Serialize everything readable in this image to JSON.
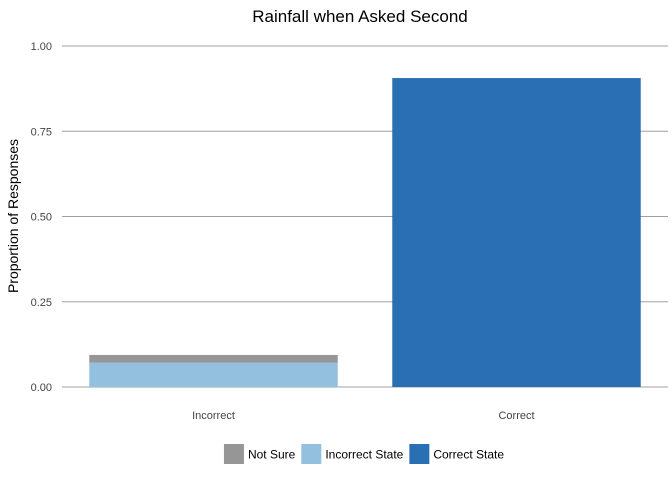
{
  "chart_data": {
    "type": "bar",
    "stacked": true,
    "title": "Rainfall when Asked Second",
    "xlabel": "",
    "ylabel": "Proportion of Responses",
    "categories": [
      "Incorrect",
      "Correct"
    ],
    "ylim": [
      0,
      1
    ],
    "yticks": [
      "0.00",
      "0.25",
      "0.50",
      "0.75",
      "1.00"
    ],
    "grid": true,
    "legend_position": "bottom",
    "series": [
      {
        "name": "Not Sure",
        "color": "#969696",
        "values": [
          0.023,
          0
        ]
      },
      {
        "name": "Incorrect State",
        "color": "#93c0de",
        "values": [
          0.071,
          0
        ]
      },
      {
        "name": "Correct State",
        "color": "#2a6eb3",
        "values": [
          0,
          0.906
        ]
      }
    ]
  }
}
